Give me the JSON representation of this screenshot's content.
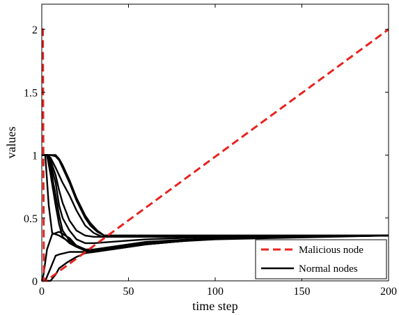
{
  "chart_data": {
    "type": "line",
    "xlabel": "time step",
    "ylabel": "values",
    "xlim": [
      0,
      200
    ],
    "ylim": [
      0,
      2.2
    ],
    "x_ticks": [
      0,
      50,
      100,
      150,
      200
    ],
    "y_ticks": [
      0,
      0.5,
      1,
      1.5,
      2
    ],
    "x_tick_labels": [
      "0",
      "50",
      "100",
      "150",
      "200"
    ],
    "y_tick_labels": [
      "0",
      "0.5",
      "1",
      "1.5",
      "2"
    ],
    "grid": false,
    "legend_position": "bottom-right",
    "legend": [
      {
        "label": "Malicious node",
        "style": "dashed",
        "color": "#e8231f"
      },
      {
        "label": "Normal nodes",
        "style": "solid",
        "color": "#000000"
      }
    ],
    "series": [
      {
        "name": "Malicious node",
        "style": "dashed",
        "color": "#e8231f",
        "x": [
          0,
          0.6,
          1.2,
          2.5,
          200
        ],
        "y": [
          2.0,
          2.0,
          0,
          0,
          2.0
        ]
      },
      {
        "style": "solid",
        "color": "#000000",
        "x": [
          0,
          3,
          5,
          8,
          10,
          12,
          16,
          20,
          25,
          28,
          32,
          36,
          40,
          60,
          100,
          200
        ],
        "y": [
          1.0,
          1.0,
          1.0,
          1.0,
          0.97,
          0.92,
          0.8,
          0.66,
          0.52,
          0.46,
          0.4,
          0.36,
          0.36,
          0.36,
          0.36,
          0.36
        ]
      },
      {
        "style": "solid",
        "color": "#000000",
        "x": [
          0,
          3,
          5,
          8,
          10,
          12,
          16,
          20,
          25,
          28,
          32,
          36,
          40,
          60,
          100,
          200
        ],
        "y": [
          1.0,
          1.0,
          1.0,
          0.99,
          0.96,
          0.9,
          0.78,
          0.64,
          0.5,
          0.44,
          0.39,
          0.36,
          0.36,
          0.36,
          0.36,
          0.36
        ]
      },
      {
        "style": "solid",
        "color": "#000000",
        "x": [
          0,
          3,
          5,
          8,
          10,
          12,
          16,
          20,
          25,
          30,
          35,
          40,
          60,
          100,
          200
        ],
        "y": [
          1.0,
          1.0,
          0.98,
          0.9,
          0.84,
          0.78,
          0.68,
          0.56,
          0.44,
          0.38,
          0.35,
          0.35,
          0.35,
          0.355,
          0.36
        ]
      },
      {
        "style": "solid",
        "color": "#000000",
        "x": [
          0,
          3,
          5,
          8,
          10,
          12,
          16,
          20,
          25,
          30,
          40,
          60,
          100,
          200
        ],
        "y": [
          1.0,
          1.0,
          0.96,
          0.84,
          0.72,
          0.62,
          0.48,
          0.4,
          0.36,
          0.35,
          0.35,
          0.35,
          0.355,
          0.36
        ]
      },
      {
        "style": "solid",
        "color": "#000000",
        "x": [
          0,
          3,
          5,
          8,
          10,
          12,
          16,
          20,
          25,
          30,
          40,
          60,
          100,
          200
        ],
        "y": [
          1.0,
          1.0,
          0.93,
          0.78,
          0.6,
          0.5,
          0.4,
          0.33,
          0.3,
          0.3,
          0.31,
          0.33,
          0.35,
          0.36
        ]
      },
      {
        "style": "solid",
        "color": "#000000",
        "x": [
          0,
          3,
          5,
          8,
          10,
          12,
          16,
          20,
          25,
          30,
          40,
          60,
          100,
          200
        ],
        "y": [
          1.0,
          1.0,
          0.9,
          0.68,
          0.52,
          0.4,
          0.32,
          0.28,
          0.25,
          0.25,
          0.27,
          0.31,
          0.34,
          0.36
        ]
      },
      {
        "style": "solid",
        "color": "#000000",
        "x": [
          0,
          3,
          5,
          8,
          10,
          12,
          16,
          20,
          25,
          30,
          40,
          60,
          100,
          200
        ],
        "y": [
          1.0,
          1.0,
          0.85,
          0.6,
          0.45,
          0.35,
          0.3,
          0.27,
          0.24,
          0.24,
          0.26,
          0.3,
          0.33,
          0.36
        ]
      },
      {
        "style": "solid",
        "color": "#000000",
        "x": [
          0,
          2,
          4,
          6,
          10,
          16,
          20,
          25,
          30,
          40,
          60,
          100,
          200
        ],
        "y": [
          1.0,
          1.0,
          0.6,
          0.38,
          0.36,
          0.31,
          0.28,
          0.25,
          0.24,
          0.26,
          0.3,
          0.34,
          0.36
        ]
      },
      {
        "style": "solid",
        "color": "#000000",
        "x": [
          0,
          1,
          3,
          6,
          10,
          16,
          20,
          25,
          30,
          40,
          60,
          100,
          200
        ],
        "y": [
          0.0,
          0.05,
          0.25,
          0.37,
          0.39,
          0.34,
          0.28,
          0.25,
          0.24,
          0.25,
          0.29,
          0.34,
          0.36
        ]
      },
      {
        "style": "solid",
        "color": "#000000",
        "x": [
          0,
          2,
          5,
          8,
          10,
          16,
          20,
          25,
          30,
          40,
          60,
          100,
          200
        ],
        "y": [
          0.0,
          0.0,
          0.1,
          0.2,
          0.21,
          0.23,
          0.23,
          0.23,
          0.23,
          0.25,
          0.29,
          0.34,
          0.36
        ]
      },
      {
        "style": "solid",
        "color": "#000000",
        "x": [
          0,
          5,
          8,
          10,
          15,
          20,
          25,
          30,
          40,
          60,
          100,
          200
        ],
        "y": [
          0.0,
          0.0,
          0.05,
          0.1,
          0.15,
          0.19,
          0.22,
          0.23,
          0.25,
          0.29,
          0.34,
          0.36
        ]
      }
    ]
  }
}
